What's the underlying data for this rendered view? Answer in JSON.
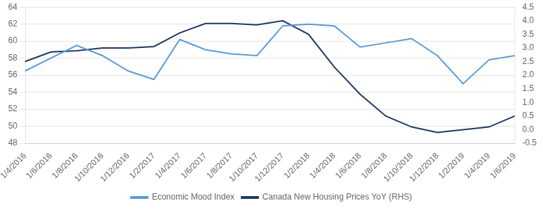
{
  "chart_data": {
    "type": "line",
    "categories": [
      "1/4/2016",
      "1/6/2016",
      "1/8/2016",
      "1/10/2016",
      "1/12/2016",
      "1/2/2017",
      "1/4/2017",
      "1/6/2017",
      "1/8/2017",
      "1/10/2017",
      "1/12/2017",
      "1/2/2018",
      "1/4/2018",
      "1/6/2018",
      "1/8/2018",
      "1/10/2018",
      "1/12/2018",
      "1/2/2019",
      "1/4/2019",
      "1/6/2019"
    ],
    "series": [
      {
        "name": "Economic Mood Index",
        "color": "#5b9bd5",
        "values": [
          56.5,
          58.0,
          59.5,
          58.3,
          56.5,
          55.5,
          60.2,
          59.0,
          58.5,
          58.3,
          61.8,
          62.0,
          61.8,
          59.3,
          59.8,
          60.3,
          58.3,
          55.0,
          57.8,
          58.3
        ]
      },
      {
        "name": "Canada New Housing Prices YoY (RHS)",
        "color": "#1f3864",
        "axis": "y2",
        "values": [
          2.5,
          2.85,
          2.9,
          3.0,
          3.0,
          3.05,
          3.55,
          3.9,
          3.9,
          3.85,
          4.0,
          3.5,
          2.3,
          1.3,
          0.5,
          0.1,
          -0.1,
          0.0,
          0.1,
          0.5
        ]
      }
    ],
    "ylim": [
      48,
      64
    ],
    "yticks": [
      48,
      50,
      52,
      54,
      56,
      58,
      60,
      62,
      64
    ],
    "y2lim": [
      -0.5,
      4.5
    ],
    "y2ticks": [
      -0.5,
      {
        "value": 0,
        "label": "0.0"
      },
      0.5,
      {
        "value": 1,
        "label": "1.0"
      },
      1.5,
      {
        "value": 2,
        "label": "2.0"
      },
      2.5,
      {
        "value": 3,
        "label": "3.0"
      },
      3.5,
      {
        "value": 4,
        "label": "4.0"
      },
      4.5
    ],
    "grid": true,
    "legend": "bottom"
  }
}
